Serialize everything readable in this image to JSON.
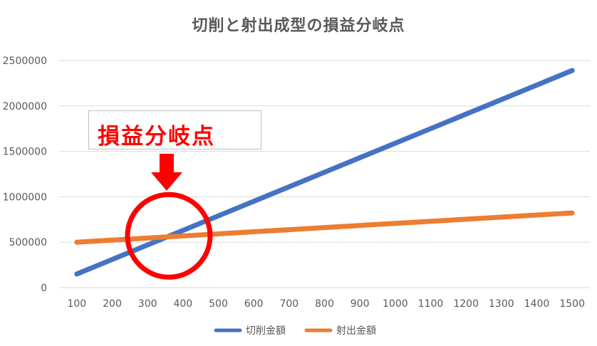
{
  "chart_data": {
    "type": "line",
    "title": "切削と射出成型の損益分岐点",
    "xlabel": "",
    "ylabel": "",
    "x": [
      100,
      200,
      300,
      400,
      500,
      600,
      700,
      800,
      900,
      1000,
      1100,
      1200,
      1300,
      1400,
      1500
    ],
    "ylim": [
      0,
      2500000
    ],
    "yticks": [
      0,
      500000,
      1000000,
      1500000,
      2000000,
      2500000
    ],
    "grid": true,
    "legend_position": "bottom",
    "series": [
      {
        "name": "切削金額",
        "color": "#4472c4",
        "values": [
          150000,
          310000,
          470000,
          630000,
          790000,
          950000,
          1110000,
          1270000,
          1430000,
          1590000,
          1750000,
          1910000,
          2070000,
          2230000,
          2390000
        ]
      },
      {
        "name": "射出金額",
        "color": "#ed7d31",
        "values": [
          500000,
          523000,
          546000,
          569000,
          592000,
          615000,
          638000,
          661000,
          684000,
          707000,
          730000,
          753000,
          776000,
          799000,
          822000
        ]
      }
    ],
    "annotations": [
      {
        "text": "損益分岐点",
        "color": "#ff0000",
        "marker": "circle-and-arrow",
        "marker_color": "#ff0000",
        "x": 360,
        "y": 570000
      }
    ]
  }
}
